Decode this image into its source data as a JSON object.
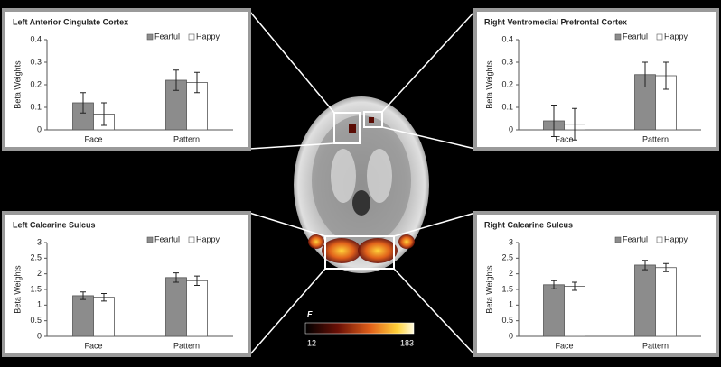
{
  "chart_data": [
    {
      "type": "bar",
      "title": "Left Anterior Cingulate Cortex",
      "ylabel": "Beta Weights",
      "categories": [
        "Face",
        "Pattern"
      ],
      "series": [
        {
          "name": "Fearful",
          "color": "#8c8c8c",
          "values": [
            0.12,
            0.22
          ],
          "errors": [
            0.045,
            0.045
          ]
        },
        {
          "name": "Happy",
          "color": "#ffffff",
          "values": [
            0.07,
            0.21
          ],
          "errors": [
            0.05,
            0.045
          ]
        }
      ],
      "ylim": [
        0,
        0.4
      ],
      "yticks": [
        0,
        0.1,
        0.2,
        0.3,
        0.4
      ]
    },
    {
      "type": "bar",
      "title": "Right Ventromedial Prefrontal Cortex",
      "ylabel": "Beta Weights",
      "categories": [
        "Face",
        "Pattern"
      ],
      "series": [
        {
          "name": "Fearful",
          "color": "#8c8c8c",
          "values": [
            0.04,
            0.245
          ],
          "errors": [
            0.07,
            0.055
          ]
        },
        {
          "name": "Happy",
          "color": "#ffffff",
          "values": [
            0.025,
            0.24
          ],
          "errors": [
            0.07,
            0.06
          ]
        }
      ],
      "ylim": [
        0,
        0.4
      ],
      "yticks": [
        0,
        0.1,
        0.2,
        0.3,
        0.4
      ]
    },
    {
      "type": "bar",
      "title": "Left Calcarine Sulcus",
      "ylabel": "Beta Weights",
      "categories": [
        "Face",
        "Pattern"
      ],
      "series": [
        {
          "name": "Fearful",
          "color": "#8c8c8c",
          "values": [
            1.3,
            1.88
          ],
          "errors": [
            0.12,
            0.15
          ]
        },
        {
          "name": "Happy",
          "color": "#ffffff",
          "values": [
            1.25,
            1.78
          ],
          "errors": [
            0.12,
            0.15
          ]
        }
      ],
      "ylim": [
        0,
        3
      ],
      "yticks": [
        0,
        0.5,
        1,
        1.5,
        2,
        2.5,
        3
      ]
    },
    {
      "type": "bar",
      "title": "Right Calcarine Sulcus",
      "ylabel": "Beta Weights",
      "categories": [
        "Face",
        "Pattern"
      ],
      "series": [
        {
          "name": "Fearful",
          "color": "#8c8c8c",
          "values": [
            1.65,
            2.28
          ],
          "errors": [
            0.13,
            0.15
          ]
        },
        {
          "name": "Happy",
          "color": "#ffffff",
          "values": [
            1.6,
            2.2
          ],
          "errors": [
            0.13,
            0.13
          ]
        }
      ],
      "ylim": [
        0,
        3
      ],
      "yticks": [
        0,
        0.5,
        1,
        1.5,
        2,
        2.5,
        3
      ]
    }
  ],
  "colorbar": {
    "label": "F",
    "min": 12,
    "max": 183
  }
}
